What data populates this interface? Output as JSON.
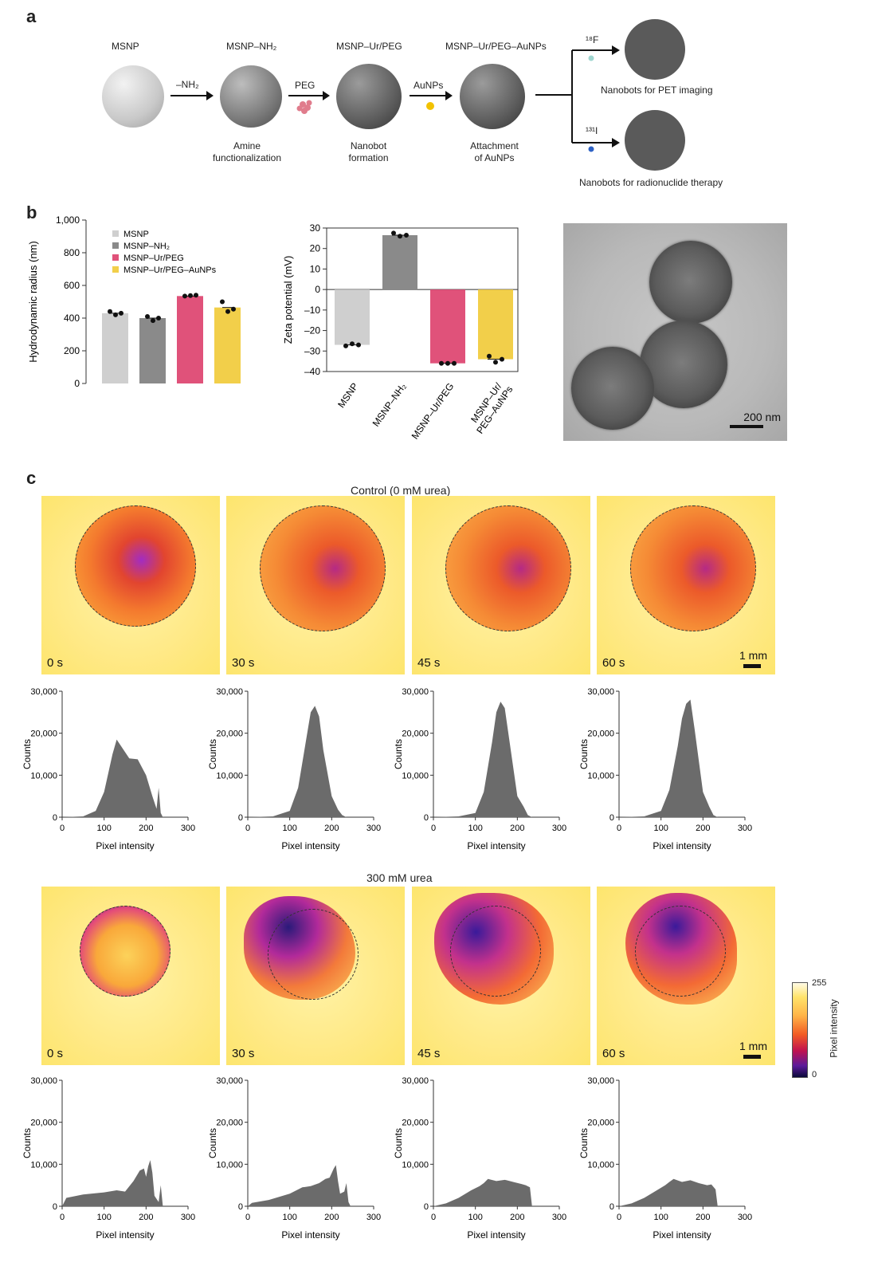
{
  "panel_a": {
    "letter": "a",
    "stages": [
      "MSNP",
      "MSNP–NH₂",
      "MSNP–Ur/PEG",
      "MSNP–Ur/PEG–AuNPs"
    ],
    "arrow_labels": [
      "–NH₂",
      "PEG",
      "AuNPs"
    ],
    "steps": [
      {
        "line1": "Amine",
        "line2": "functionalization"
      },
      {
        "line1": "Nanobot",
        "line2": "formation"
      },
      {
        "line1": "Attachment",
        "line2": "of AuNPs"
      }
    ],
    "isotopes": [
      "¹⁸F",
      "¹³¹I"
    ],
    "outcomes": [
      "Nanobots for PET imaging",
      "Nanobots for radionuclide therapy"
    ]
  },
  "panel_b": {
    "letter": "b",
    "scale_bar": "200 nm",
    "colors": {
      "MSNP": "#cfcfcf",
      "MSNP-NH2": "#8a8a8a",
      "MSNP-Ur/PEG": "#e0527a",
      "MSNP-Ur/PEG-AuNPs": "#f2cf4a"
    }
  },
  "chart_data": [
    {
      "type": "bar",
      "ylabel": "Hydrodynamic radius (nm)",
      "ylim": [
        0,
        1000
      ],
      "yticks": [
        "0",
        "200",
        "400",
        "600",
        "800",
        "1,000"
      ],
      "legend": [
        "MSNP",
        "MSNP–NH₂",
        "MSNP–Ur/PEG",
        "MSNP–Ur/PEG–AuNPs"
      ],
      "legend_position": "top-left",
      "values": [
        430,
        400,
        535,
        465
      ],
      "points": [
        [
          440,
          420,
          430
        ],
        [
          410,
          385,
          400
        ],
        [
          535,
          538,
          540
        ],
        [
          500,
          440,
          455
        ]
      ]
    },
    {
      "type": "bar",
      "ylabel": "Zeta potential (mV)",
      "ylim": [
        -40,
        30
      ],
      "yticks": [
        "30",
        "20",
        "10",
        "0",
        "–10",
        "–20",
        "–30",
        "–40"
      ],
      "categories": [
        "MSNP",
        "MSNP–NH₂",
        "MSNP–Ur/PEG",
        "MSNP–Ur/\nPEG–AuNPs"
      ],
      "values": [
        -27,
        26.5,
        -36,
        -34
      ],
      "points": [
        [
          -27.5,
          -26.5,
          -27
        ],
        [
          27.5,
          26,
          26.5
        ],
        [
          -36,
          -36,
          -36
        ],
        [
          -32.5,
          -35.5,
          -34
        ]
      ]
    }
  ],
  "panel_c": {
    "letter": "c",
    "control_title": "Control  (0 mM urea)",
    "urea_title": "300 mM urea",
    "times": [
      "0 s",
      "30 s",
      "45 s",
      "60 s"
    ],
    "scale_label": "1 mm",
    "colorbar": {
      "max": "255",
      "min": "0",
      "label": "Pixel intensity"
    },
    "hist_ylabel": "Counts",
    "hist_xlabel": "Pixel intensity",
    "hist_yticks": [
      "0",
      "10,000",
      "20,000",
      "30,000"
    ],
    "hist_xticks": [
      "0",
      "100",
      "200",
      "300"
    ],
    "histograms": {
      "control": [
        {
          "x": [
            0,
            50,
            80,
            100,
            120,
            130,
            140,
            160,
            180,
            200,
            215,
            225,
            230,
            235,
            240
          ],
          "y": [
            0,
            200,
            1500,
            6000,
            15000,
            18500,
            17000,
            14000,
            13800,
            10000,
            5000,
            2000,
            7000,
            1000,
            0
          ]
        },
        {
          "x": [
            0,
            60,
            100,
            120,
            140,
            150,
            160,
            170,
            180,
            200,
            215,
            225,
            235
          ],
          "y": [
            0,
            200,
            1500,
            7000,
            19000,
            25000,
            26500,
            24000,
            16000,
            5000,
            1800,
            500,
            0
          ]
        },
        {
          "x": [
            0,
            60,
            100,
            120,
            140,
            150,
            160,
            170,
            180,
            200,
            215,
            225,
            235
          ],
          "y": [
            0,
            200,
            1000,
            6000,
            18000,
            25000,
            27500,
            26000,
            19000,
            5000,
            2500,
            500,
            0
          ]
        },
        {
          "x": [
            0,
            60,
            100,
            120,
            140,
            150,
            160,
            170,
            180,
            200,
            215,
            225,
            235
          ],
          "y": [
            0,
            200,
            1500,
            6500,
            17000,
            23500,
            27000,
            28000,
            21000,
            6000,
            2500,
            500,
            0
          ]
        }
      ],
      "urea": [
        {
          "x": [
            0,
            10,
            50,
            100,
            130,
            150,
            170,
            185,
            195,
            200,
            205,
            210,
            215,
            220,
            230,
            235,
            240
          ],
          "y": [
            0,
            2000,
            2800,
            3300,
            3800,
            3500,
            6000,
            8500,
            9000,
            7000,
            9500,
            11000,
            8000,
            2500,
            1000,
            5000,
            0
          ]
        },
        {
          "x": [
            0,
            10,
            50,
            100,
            130,
            150,
            170,
            185,
            195,
            205,
            210,
            215,
            220,
            230,
            235,
            240,
            245
          ],
          "y": [
            0,
            800,
            1500,
            3000,
            4500,
            4800,
            5500,
            6500,
            6800,
            9000,
            9800,
            6000,
            3000,
            3500,
            5500,
            1000,
            0
          ]
        },
        {
          "x": [
            0,
            30,
            60,
            90,
            110,
            120,
            130,
            150,
            170,
            190,
            210,
            220,
            230,
            235
          ],
          "y": [
            0,
            700,
            2000,
            3800,
            4800,
            5500,
            6500,
            6000,
            6300,
            5800,
            5300,
            5000,
            4500,
            0
          ]
        },
        {
          "x": [
            0,
            30,
            60,
            90,
            110,
            120,
            130,
            150,
            170,
            190,
            210,
            220,
            230,
            235
          ],
          "y": [
            0,
            700,
            2000,
            3800,
            5000,
            5800,
            6500,
            5800,
            6200,
            5500,
            5000,
            5200,
            4000,
            0
          ]
        }
      ]
    }
  }
}
